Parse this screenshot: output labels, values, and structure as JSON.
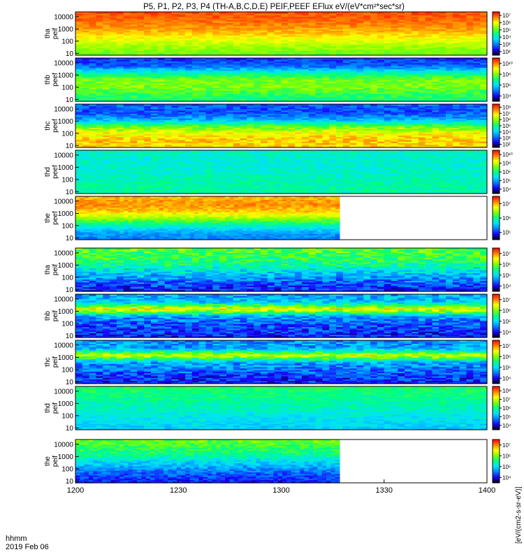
{
  "chart_data": {
    "type": "heatmap",
    "title": "P5, P1, P2, P3, P4 (TH-A,B,C,D,E) PEIF,PEEF EFlux eV/(eV*cm²*sec*sr)",
    "x_ticks": [
      "1200",
      "1230",
      "1300",
      "1330",
      "1400"
    ],
    "x_range": [
      "12:00",
      "14:00"
    ],
    "time_label": "hhmm",
    "date_label": "2019 Feb 06",
    "y_scale": "log",
    "y_ticks": [
      "10",
      "100",
      "1000",
      "10000"
    ],
    "y_range_eV": [
      7,
      25000
    ],
    "colorbar_label": "[eV/(cm2-s-sr-eV)]",
    "colorbar_scale": "log",
    "palette": [
      "#000000",
      "#1a00ff",
      "#0080ff",
      "#00e0ff",
      "#00ff80",
      "#80ff00",
      "#ffff00",
      "#ff8000",
      "#ff0000",
      "#ffffff"
    ],
    "panels": [
      {
        "label": "tha",
        "sublabel": "peif",
        "colorbar_ticks": [
          "10²",
          "10³",
          "10⁴",
          "10⁵",
          "10⁶",
          "10⁷"
        ],
        "data_end": "14:00",
        "profile": [
          0.6,
          0.65,
          0.72,
          0.8,
          0.86,
          0.9,
          0.92
        ],
        "noise": 0.04
      },
      {
        "label": "thb",
        "sublabel": "peef",
        "colorbar_ticks": [
          "10⁴",
          "10⁶",
          "10⁸",
          "10¹⁰"
        ],
        "data_end": "14:00",
        "profile": [
          0.5,
          0.55,
          0.62,
          0.62,
          0.45,
          0.22,
          0.18
        ],
        "noise": 0.06
      },
      {
        "label": "thc",
        "sublabel": "peef",
        "colorbar_ticks": [
          "10²",
          "10³",
          "10⁴",
          "10⁵",
          "10⁶",
          "10⁷",
          "10⁸"
        ],
        "data_end": "14:00",
        "profile": [
          0.78,
          0.8,
          0.74,
          0.58,
          0.3,
          0.2,
          0.22
        ],
        "noise": 0.07
      },
      {
        "label": "thd",
        "sublabel": "peef",
        "colorbar_ticks": [
          "10⁴",
          "10⁵",
          "10⁶",
          "10⁸",
          "10¹⁰"
        ],
        "data_end": "14:00",
        "profile": [
          0.46,
          0.47,
          0.45,
          0.43,
          0.42,
          0.42,
          0.44
        ],
        "noise": 0.05
      },
      {
        "label": "the",
        "sublabel": "peef",
        "colorbar_ticks": [
          "10⁵",
          "10⁶",
          "10⁷"
        ],
        "data_end": "13:17",
        "profile": [
          0.25,
          0.3,
          0.45,
          0.65,
          0.8,
          0.86,
          0.82
        ],
        "noise": 0.05
      },
      {
        "label": "tha",
        "sublabel": "peif",
        "colorbar_ticks": [
          "10⁴",
          "10⁵",
          "10⁶",
          "10⁷"
        ],
        "data_end": "14:00",
        "profile": [
          0.15,
          0.2,
          0.3,
          0.4,
          0.5,
          0.55,
          0.58
        ],
        "noise": 0.1
      },
      {
        "label": "thb",
        "sublabel": "peif",
        "colorbar_ticks": [
          "10⁴",
          "10⁵",
          "10⁶",
          "10⁷"
        ],
        "data_end": "14:00",
        "profile": [
          0.15,
          0.18,
          0.22,
          0.3,
          0.75,
          0.35,
          0.3
        ],
        "noise": 0.1
      },
      {
        "label": "thc",
        "sublabel": "peif",
        "colorbar_ticks": [
          "10⁴",
          "10⁵",
          "10⁶",
          "10⁷"
        ],
        "data_end": "14:00",
        "profile": [
          0.15,
          0.18,
          0.25,
          0.3,
          0.72,
          0.3,
          0.28
        ],
        "noise": 0.1
      },
      {
        "label": "thd",
        "sublabel": "peif",
        "colorbar_ticks": [
          "10⁴",
          "10⁵",
          "10⁶",
          "10⁷",
          "10⁸"
        ],
        "data_end": "14:00",
        "profile": [
          0.35,
          0.38,
          0.4,
          0.44,
          0.47,
          0.5,
          0.52
        ],
        "noise": 0.05
      },
      {
        "label": "the",
        "sublabel": "peif",
        "colorbar_ticks": [
          "10⁴",
          "10⁵",
          "10⁶",
          "10⁷"
        ],
        "data_end": "13:17",
        "profile": [
          0.15,
          0.2,
          0.28,
          0.38,
          0.48,
          0.55,
          0.6
        ],
        "noise": 0.07
      }
    ]
  }
}
